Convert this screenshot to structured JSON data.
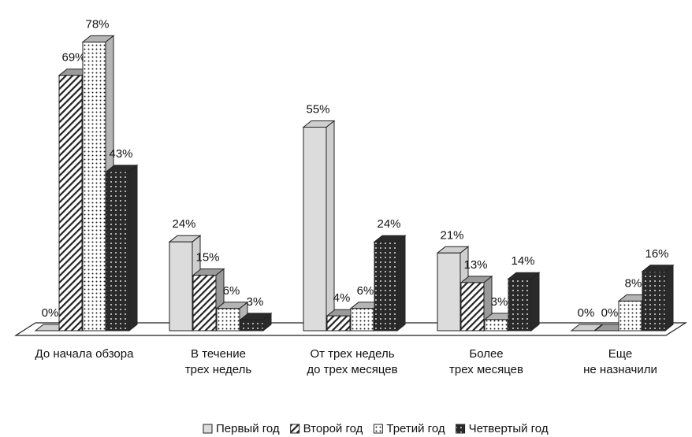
{
  "chart_data": {
    "type": "bar3d",
    "categories": [
      "До начала обзора",
      "В течение\nтрех недель",
      "От трех недель\nдо трех месяцев",
      "Более\nтрех месяцев",
      "Еще\nне назначили"
    ],
    "series": [
      {
        "name": "Первый год",
        "color": "#cfcfcf",
        "values": [
          0,
          24,
          55,
          21,
          0
        ],
        "value_labels": [
          "0%",
          "24%",
          "55%",
          "21%",
          "0%"
        ]
      },
      {
        "name": "Второй год",
        "color": "#9a9a9a",
        "values": [
          69,
          15,
          4,
          13,
          0
        ],
        "value_labels": [
          "69%",
          "15%",
          "4%",
          "13%",
          "0%"
        ]
      },
      {
        "name": "Третий год",
        "color": "#b5b5b5",
        "values": [
          78,
          6,
          6,
          3,
          8
        ],
        "value_labels": [
          "78%",
          "6%",
          "6%",
          "3%",
          "8%"
        ]
      },
      {
        "name": "Четвертый год",
        "color": "#2a2a2a",
        "values": [
          43,
          3,
          24,
          14,
          16
        ],
        "value_labels": [
          "43%",
          "3%",
          "24%",
          "14%",
          "16%"
        ]
      }
    ],
    "legend": "bottom"
  }
}
